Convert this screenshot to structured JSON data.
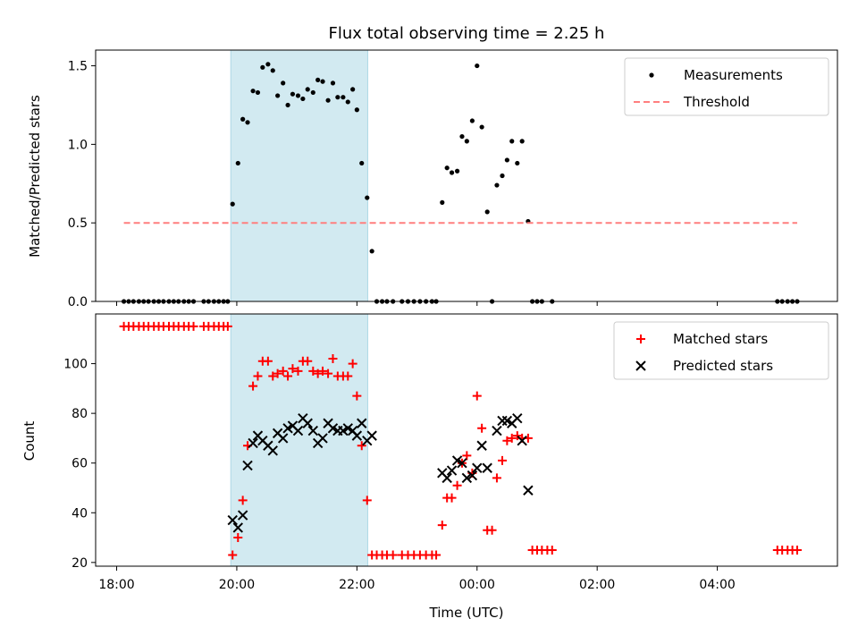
{
  "chart_data": {
    "title": "Flux total observing time = 2.25 h",
    "xlabel": "Time (UTC)",
    "x_ticks": [
      "18:00",
      "20:00",
      "22:00",
      "00:00",
      "02:00",
      "04:00"
    ],
    "x_tick_hours": [
      18,
      20,
      22,
      24,
      26,
      28
    ],
    "xlim_hours": [
      17.65,
      30.0
    ],
    "shaded_interval_hours": [
      19.9,
      22.18
    ],
    "shade_color": "#add8e6",
    "panels": [
      {
        "type": "scatter",
        "ylabel": "Matched/Predicted stars",
        "ylim": [
          0,
          1.6
        ],
        "y_ticks": [
          0.0,
          0.5,
          1.0,
          1.5
        ],
        "y_tick_labels": [
          "0.0",
          "0.5",
          "1.0",
          "1.5"
        ],
        "legend_position": "upper-right",
        "series": [
          {
            "name": "Measurements",
            "marker": "dot",
            "color": "#000000",
            "points": [
              [
                18.12,
                0
              ],
              [
                18.2,
                0
              ],
              [
                18.28,
                0
              ],
              [
                18.37,
                0
              ],
              [
                18.45,
                0
              ],
              [
                18.53,
                0
              ],
              [
                18.62,
                0
              ],
              [
                18.7,
                0
              ],
              [
                18.78,
                0
              ],
              [
                18.87,
                0
              ],
              [
                18.95,
                0
              ],
              [
                19.03,
                0
              ],
              [
                19.12,
                0
              ],
              [
                19.2,
                0
              ],
              [
                19.28,
                0
              ],
              [
                19.45,
                0
              ],
              [
                19.53,
                0
              ],
              [
                19.62,
                0
              ],
              [
                19.7,
                0
              ],
              [
                19.78,
                0
              ],
              [
                19.85,
                0
              ],
              [
                19.93,
                0.62
              ],
              [
                20.02,
                0.88
              ],
              [
                20.1,
                1.16
              ],
              [
                20.18,
                1.14
              ],
              [
                20.27,
                1.34
              ],
              [
                20.35,
                1.33
              ],
              [
                20.43,
                1.49
              ],
              [
                20.52,
                1.51
              ],
              [
                20.6,
                1.47
              ],
              [
                20.68,
                1.31
              ],
              [
                20.77,
                1.39
              ],
              [
                20.85,
                1.25
              ],
              [
                20.93,
                1.32
              ],
              [
                21.02,
                1.31
              ],
              [
                21.1,
                1.29
              ],
              [
                21.18,
                1.35
              ],
              [
                21.27,
                1.33
              ],
              [
                21.35,
                1.41
              ],
              [
                21.43,
                1.4
              ],
              [
                21.52,
                1.28
              ],
              [
                21.6,
                1.39
              ],
              [
                21.68,
                1.3
              ],
              [
                21.77,
                1.3
              ],
              [
                21.85,
                1.27
              ],
              [
                21.93,
                1.35
              ],
              [
                22.0,
                1.22
              ],
              [
                22.08,
                0.88
              ],
              [
                22.17,
                0.66
              ],
              [
                22.25,
                0.32
              ],
              [
                22.33,
                0
              ],
              [
                22.42,
                0
              ],
              [
                22.5,
                0
              ],
              [
                22.6,
                0
              ],
              [
                22.75,
                0
              ],
              [
                22.85,
                0
              ],
              [
                22.95,
                0
              ],
              [
                23.05,
                0
              ],
              [
                23.15,
                0
              ],
              [
                23.25,
                0
              ],
              [
                23.32,
                0
              ],
              [
                23.42,
                0.63
              ],
              [
                23.5,
                0.85
              ],
              [
                23.58,
                0.82
              ],
              [
                23.67,
                0.83
              ],
              [
                23.75,
                1.05
              ],
              [
                23.83,
                1.02
              ],
              [
                23.92,
                1.15
              ],
              [
                24.0,
                1.5
              ],
              [
                24.08,
                1.11
              ],
              [
                24.17,
                0.57
              ],
              [
                24.25,
                0.0
              ],
              [
                24.33,
                0.74
              ],
              [
                24.42,
                0.8
              ],
              [
                24.5,
                0.9
              ],
              [
                24.58,
                1.02
              ],
              [
                24.67,
                0.88
              ],
              [
                24.75,
                1.02
              ],
              [
                24.85,
                0.51
              ],
              [
                24.92,
                0
              ],
              [
                25.0,
                0
              ],
              [
                25.08,
                0
              ],
              [
                25.25,
                0
              ],
              [
                29.0,
                0
              ],
              [
                29.08,
                0
              ],
              [
                29.17,
                0
              ],
              [
                29.25,
                0
              ],
              [
                29.33,
                0
              ]
            ]
          },
          {
            "name": "Threshold",
            "marker": "dashed-line",
            "color": "#ff7f7f",
            "points": [
              [
                18.12,
                0.5
              ],
              [
                29.33,
                0.5
              ]
            ]
          }
        ]
      },
      {
        "type": "scatter",
        "ylabel": "Count",
        "ylim": [
          18.5,
          120
        ],
        "y_ticks": [
          20,
          40,
          60,
          80,
          100
        ],
        "y_tick_labels": [
          "20",
          "40",
          "60",
          "80",
          "100"
        ],
        "legend_position": "upper-right",
        "series": [
          {
            "name": "Matched stars",
            "marker": "plus",
            "color": "#ff0000",
            "points": [
              [
                18.12,
                115
              ],
              [
                18.2,
                115
              ],
              [
                18.28,
                115
              ],
              [
                18.37,
                115
              ],
              [
                18.45,
                115
              ],
              [
                18.53,
                115
              ],
              [
                18.62,
                115
              ],
              [
                18.7,
                115
              ],
              [
                18.78,
                115
              ],
              [
                18.87,
                115
              ],
              [
                18.95,
                115
              ],
              [
                19.03,
                115
              ],
              [
                19.12,
                115
              ],
              [
                19.2,
                115
              ],
              [
                19.28,
                115
              ],
              [
                19.45,
                115
              ],
              [
                19.53,
                115
              ],
              [
                19.62,
                115
              ],
              [
                19.7,
                115
              ],
              [
                19.78,
                115
              ],
              [
                19.85,
                115
              ],
              [
                19.93,
                23
              ],
              [
                20.02,
                30
              ],
              [
                20.1,
                45
              ],
              [
                20.18,
                67
              ],
              [
                20.27,
                91
              ],
              [
                20.35,
                95
              ],
              [
                20.43,
                101
              ],
              [
                20.52,
                101
              ],
              [
                20.6,
                95
              ],
              [
                20.68,
                96
              ],
              [
                20.77,
                97
              ],
              [
                20.85,
                95
              ],
              [
                20.93,
                98
              ],
              [
                21.02,
                97
              ],
              [
                21.1,
                101
              ],
              [
                21.18,
                101
              ],
              [
                21.27,
                97
              ],
              [
                21.35,
                96
              ],
              [
                21.43,
                97
              ],
              [
                21.52,
                96
              ],
              [
                21.6,
                102
              ],
              [
                21.68,
                95
              ],
              [
                21.77,
                95
              ],
              [
                21.85,
                95
              ],
              [
                21.93,
                100
              ],
              [
                22.0,
                87
              ],
              [
                22.08,
                67
              ],
              [
                22.17,
                45
              ],
              [
                22.25,
                23
              ],
              [
                22.33,
                23
              ],
              [
                22.42,
                23
              ],
              [
                22.5,
                23
              ],
              [
                22.6,
                23
              ],
              [
                22.75,
                23
              ],
              [
                22.85,
                23
              ],
              [
                22.95,
                23
              ],
              [
                23.05,
                23
              ],
              [
                23.15,
                23
              ],
              [
                23.25,
                23
              ],
              [
                23.32,
                23
              ],
              [
                23.42,
                35
              ],
              [
                23.5,
                46
              ],
              [
                23.58,
                46
              ],
              [
                23.67,
                51
              ],
              [
                23.75,
                60
              ],
              [
                23.83,
                63
              ],
              [
                23.92,
                56
              ],
              [
                24.0,
                87
              ],
              [
                24.08,
                74
              ],
              [
                24.17,
                33
              ],
              [
                24.25,
                33
              ],
              [
                24.33,
                54
              ],
              [
                24.42,
                61
              ],
              [
                24.5,
                69
              ],
              [
                24.58,
                70
              ],
              [
                24.67,
                71
              ],
              [
                24.75,
                70
              ],
              [
                24.85,
                70
              ],
              [
                24.92,
                25
              ],
              [
                25.0,
                25
              ],
              [
                25.08,
                25
              ],
              [
                25.17,
                25
              ],
              [
                25.25,
                25
              ],
              [
                29.0,
                25
              ],
              [
                29.08,
                25
              ],
              [
                29.17,
                25
              ],
              [
                29.25,
                25
              ],
              [
                29.33,
                25
              ]
            ]
          },
          {
            "name": "Predicted stars",
            "marker": "x",
            "color": "#000000",
            "points": [
              [
                19.93,
                37
              ],
              [
                20.02,
                34
              ],
              [
                20.1,
                39
              ],
              [
                20.18,
                59
              ],
              [
                20.27,
                68
              ],
              [
                20.35,
                71
              ],
              [
                20.43,
                69
              ],
              [
                20.52,
                67
              ],
              [
                20.6,
                65
              ],
              [
                20.68,
                72
              ],
              [
                20.77,
                70
              ],
              [
                20.85,
                74
              ],
              [
                20.93,
                75
              ],
              [
                21.02,
                73
              ],
              [
                21.1,
                78
              ],
              [
                21.18,
                76
              ],
              [
                21.27,
                73
              ],
              [
                21.35,
                68
              ],
              [
                21.43,
                70
              ],
              [
                21.52,
                76
              ],
              [
                21.6,
                74
              ],
              [
                21.68,
                73
              ],
              [
                21.77,
                73
              ],
              [
                21.85,
                74
              ],
              [
                21.93,
                73
              ],
              [
                22.0,
                71
              ],
              [
                22.08,
                76
              ],
              [
                22.17,
                69
              ],
              [
                22.25,
                71
              ],
              [
                23.42,
                56
              ],
              [
                23.5,
                54
              ],
              [
                23.58,
                57
              ],
              [
                23.67,
                61
              ],
              [
                23.75,
                60
              ],
              [
                23.83,
                54
              ],
              [
                23.92,
                55
              ],
              [
                24.0,
                58
              ],
              [
                24.08,
                67
              ],
              [
                24.17,
                58
              ],
              [
                24.33,
                73
              ],
              [
                24.42,
                77
              ],
              [
                24.5,
                77
              ],
              [
                24.58,
                76
              ],
              [
                24.67,
                78
              ],
              [
                24.75,
                69
              ],
              [
                24.85,
                49
              ]
            ]
          }
        ]
      }
    ]
  }
}
